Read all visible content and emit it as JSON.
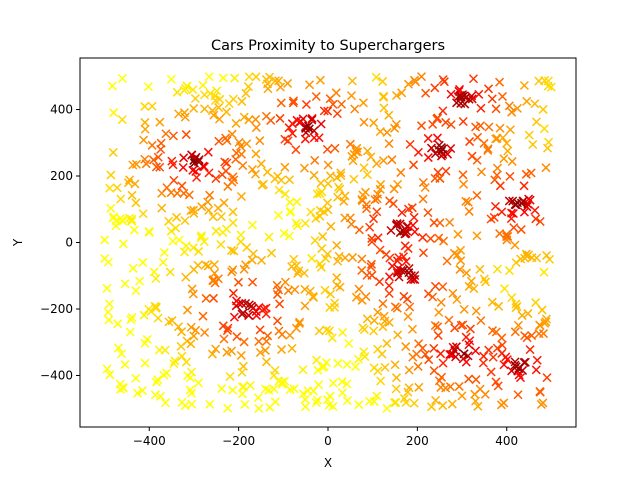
{
  "chart_data": {
    "type": "scatter",
    "title": "Cars Proximity to Superchargers",
    "xlabel": "X",
    "ylabel": "Y",
    "xlim": [
      -555,
      555
    ],
    "ylim": [
      -555,
      555
    ],
    "xticks": [
      -400,
      -200,
      0,
      200,
      400
    ],
    "yticks": [
      -400,
      -200,
      0,
      200,
      400
    ],
    "xtick_labels": [
      "−400",
      "−200",
      "0",
      "200",
      "400"
    ],
    "ytick_labels": [
      "−400",
      "−200",
      "0",
      "200",
      "400"
    ],
    "marker": "x",
    "colormap": "hot (reversed): yellow = far, dark red = near",
    "colors": {
      "far": "#ffff00",
      "mid": "#ff8c00",
      "near": "#ff0000",
      "nearest": "#6b0000"
    },
    "grid": false,
    "legend": "none",
    "clusters": [
      {
        "x": -300,
        "y": 245,
        "count": 10
      },
      {
        "x": -40,
        "y": 350,
        "count": 10
      },
      {
        "x": 300,
        "y": 430,
        "count": 10
      },
      {
        "x": 160,
        "y": 40,
        "count": 12
      },
      {
        "x": 175,
        "y": -95,
        "count": 10
      },
      {
        "x": -185,
        "y": -200,
        "count": 12
      },
      {
        "x": 425,
        "y": 120,
        "count": 10
      },
      {
        "x": 250,
        "y": 280,
        "count": 8
      },
      {
        "x": 300,
        "y": -330,
        "count": 8
      },
      {
        "x": 430,
        "y": -370,
        "count": 8
      }
    ],
    "points_approx_total": 1000
  }
}
